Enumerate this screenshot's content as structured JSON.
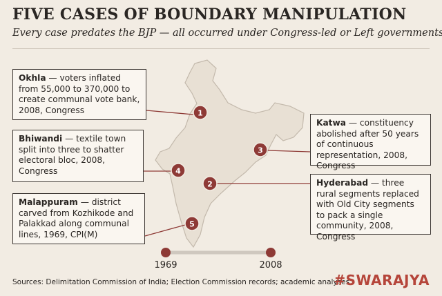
{
  "header": {
    "title": "FIVE CASES OF BOUNDARY MANIPULATION",
    "subtitle": "Every case predates the BJP — all occurred under Congress-led or Left governments"
  },
  "cases": [
    {
      "number": "1",
      "name": "Okhla",
      "text": "— voters inflated from 55,000 to 370,000 to create communal vote bank, 2008, Congress"
    },
    {
      "number": "2",
      "name": "Hyderabad",
      "text": "— three rural segments replaced with Old City segments to pack a single community, 2008, Congress"
    },
    {
      "number": "3",
      "name": "Katwa",
      "text": "— constituency abolished after 50 years of continuous representation, 2008, Congress"
    },
    {
      "number": "4",
      "name": "Bhiwandi",
      "text": "— textile town split into three to shatter electoral bloc, 2008, Congress"
    },
    {
      "number": "5",
      "name": "Malappuram",
      "text": "— district carved from Kozhikode and Palakkad along communal lines, 1969, CPI(M)"
    }
  ],
  "timeline": {
    "start": "1969",
    "end": "2008"
  },
  "footer": {
    "sources": "Sources: Delimitation Commission of India; Election Commission records; academic analyses.",
    "brand": "#SWARAJYA"
  }
}
